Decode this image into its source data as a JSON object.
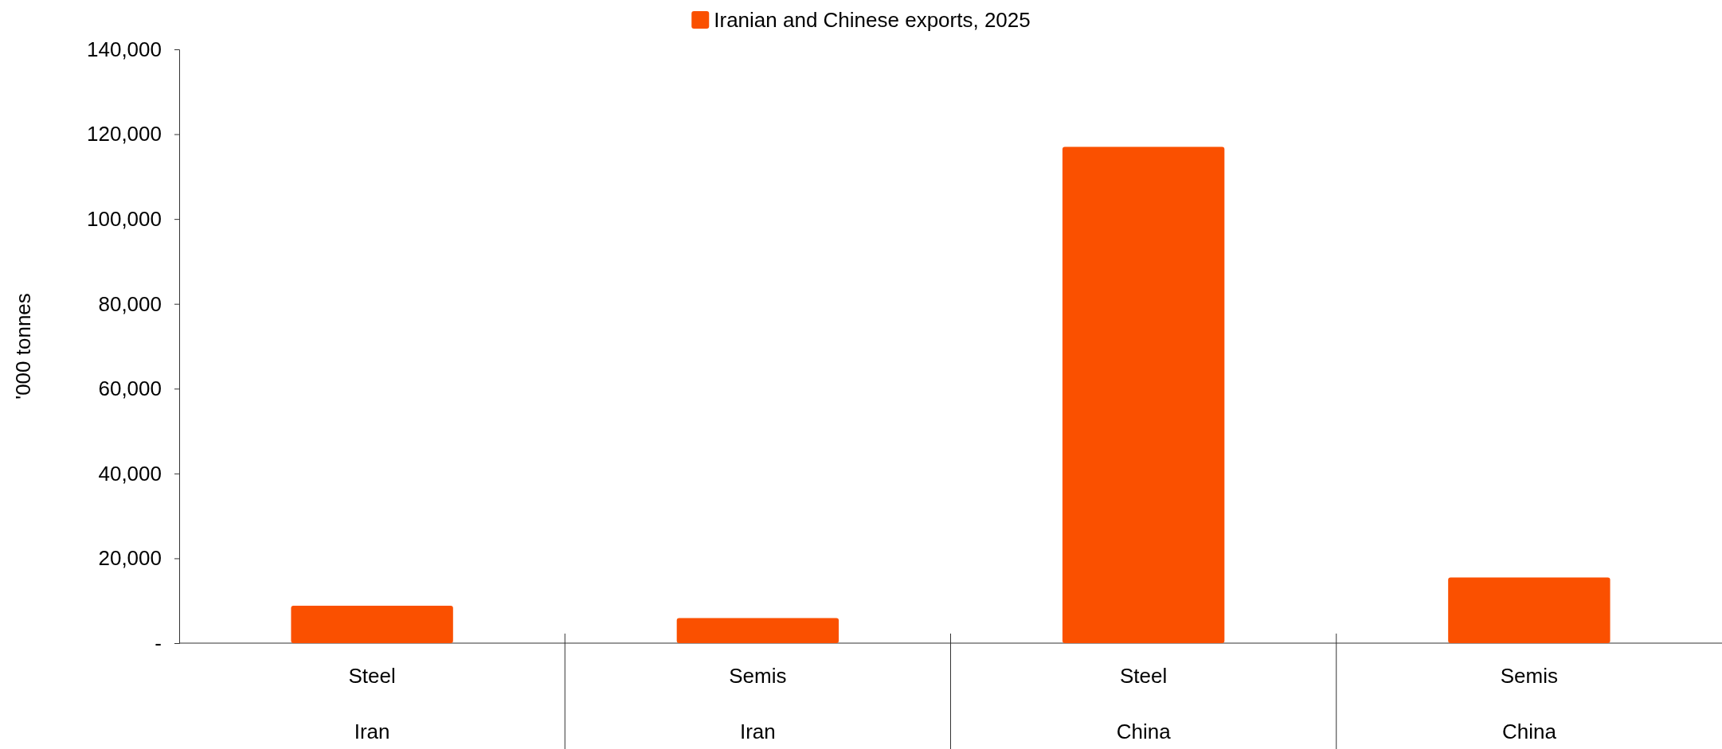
{
  "chart_data": {
    "type": "bar",
    "ylabel": "'000 tonnes",
    "legend": "top",
    "categories": [
      "Steel\nIran",
      "Semis\nIran",
      "Steel\nChina",
      "Semis\nChina"
    ],
    "series": [
      {
        "name": "Iranian and Chinese exports, 2025",
        "color": "#fa5000",
        "values": [
          8800,
          5900,
          117000,
          15500
        ]
      }
    ],
    "ylim": [
      0,
      140000
    ],
    "yticks": [
      {
        "value": 0,
        "label": "-"
      },
      {
        "value": 20000,
        "label": "20,000"
      },
      {
        "value": 40000,
        "label": "40,000"
      },
      {
        "value": 60000,
        "label": "60,000"
      },
      {
        "value": 80000,
        "label": "80,000"
      },
      {
        "value": 100000,
        "label": "100,000"
      },
      {
        "value": 120000,
        "label": "120,000"
      },
      {
        "value": 140000,
        "label": "140,000"
      }
    ],
    "grid": false
  }
}
